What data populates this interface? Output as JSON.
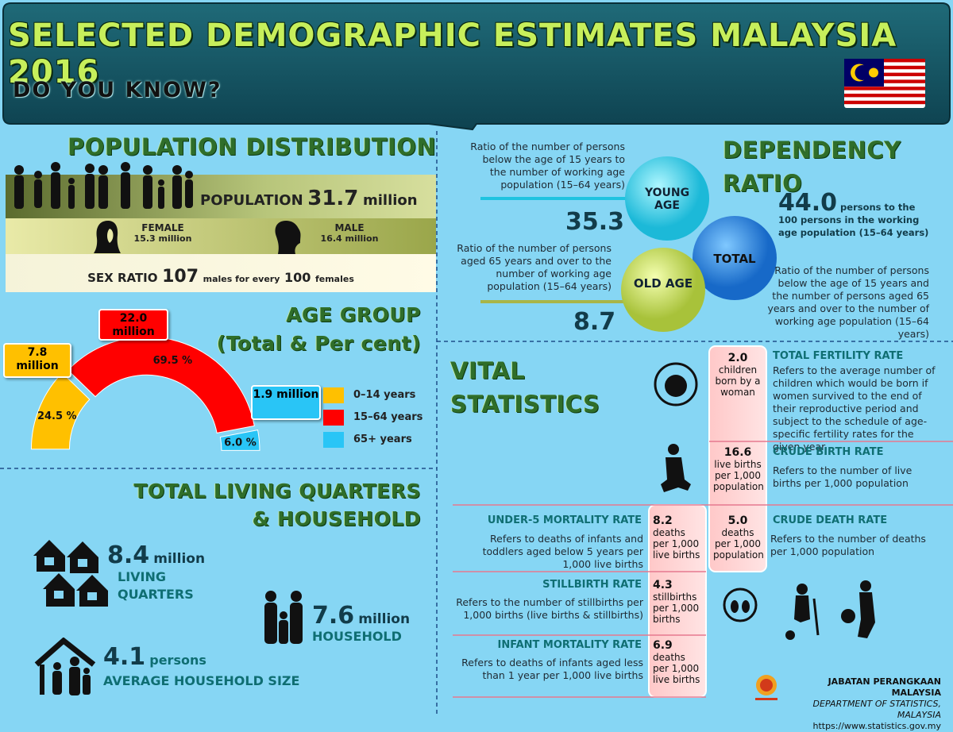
{
  "header": {
    "title": "SELECTED DEMOGRAPHIC ESTIMATES MALAYSIA 2016",
    "subtitle": "DO YOU KNOW?"
  },
  "population": {
    "title": "POPULATION DISTRIBUTION",
    "label": "POPULATION",
    "value": "31.7",
    "unit": "million",
    "female": {
      "label": "FEMALE",
      "value": "15.3 million"
    },
    "male": {
      "label": "MALE",
      "value": "16.4 million"
    },
    "sex_ratio": {
      "label": "SEX RATIO",
      "value": "107",
      "text": "males for every",
      "base": "100",
      "unit": "females"
    }
  },
  "chart_data": {
    "type": "pie",
    "title": "AGE GROUP",
    "subtitle": "(Total & Per cent)",
    "categories": [
      "0–14 years",
      "15–64 years",
      "65+ years"
    ],
    "values": [
      24.5,
      69.5,
      6.0
    ],
    "value_labels": [
      "24.5 %",
      "69.5 %",
      "6.0 %"
    ],
    "colors": [
      "#ffc000",
      "#ff0000",
      "#29c5f6"
    ],
    "annotations": [
      "7.8 million",
      "22.0 million",
      "1.9 million"
    ]
  },
  "living": {
    "title": "TOTAL LIVING QUARTERS",
    "title2": "& HOUSEHOLD",
    "quarters": {
      "value": "8.4",
      "unit": "million",
      "label": "LIVING QUARTERS"
    },
    "household": {
      "value": "7.6",
      "unit": "million",
      "label": "HOUSEHOLD"
    },
    "size": {
      "value": "4.1",
      "unit": "persons",
      "label": "AVERAGE HOUSEHOLD SIZE"
    }
  },
  "dependency": {
    "title": "DEPENDENCY RATIO",
    "young": {
      "label": "YOUNG AGE",
      "value": "35.3",
      "description": "Ratio of the number of persons below the age of 15 years to the number of working age population (15–64 years)"
    },
    "old": {
      "label": "OLD AGE",
      "value": "8.7",
      "description": "Ratio of the number of persons aged 65 years and over to the number of working age population (15–64 years)"
    },
    "total": {
      "label": "TOTAL",
      "value": "44.0",
      "unit": "persons to the 100 persons in the working age population (15–64 years)",
      "description": "Ratio of the number of persons below the age of 15 years and the number of persons aged 65 years and over to the number of working age population (15–64 years)"
    }
  },
  "vital": {
    "title": "VITAL STATISTICS",
    "items": [
      {
        "name": "TOTAL FERTILITY RATE",
        "value": "2.0",
        "unit": "children born by a woman",
        "description": "Refers to the average number of children which would be born if women survived to the end of their reproductive period and subject to the schedule of age-specific fertility rates for the given year"
      },
      {
        "name": "CRUDE BIRTH RATE",
        "value": "16.6",
        "unit": "live births per 1,000 population",
        "description": "Refers to the number of live births per 1,000 population"
      },
      {
        "name": "CRUDE DEATH RATE",
        "value": "5.0",
        "unit": "deaths per 1,000 population",
        "description": "Refers to the number of deaths per 1,000 population"
      },
      {
        "name": "UNDER-5 MORTALITY RATE",
        "value": "8.2",
        "unit": "deaths per 1,000 live births",
        "description": "Refers to deaths of infants and toddlers aged below 5 years per 1,000 live births"
      },
      {
        "name": "STILLBIRTH RATE",
        "value": "4.3",
        "unit": "stillbirths per 1,000 births",
        "description": "Refers to the number of stillbirths per 1,000 births (live births & stillbirths)"
      },
      {
        "name": "INFANT MORTALITY RATE",
        "value": "6.9",
        "unit": "deaths per 1,000 live births",
        "description": "Refers to deaths of infants aged less than 1 year per 1,000 live births"
      }
    ]
  },
  "footer": {
    "org": "JABATAN PERANGKAAN MALAYSIA",
    "org_en": "DEPARTMENT OF STATISTICS, MALAYSIA",
    "url": "https://www.statistics.gov.my"
  }
}
